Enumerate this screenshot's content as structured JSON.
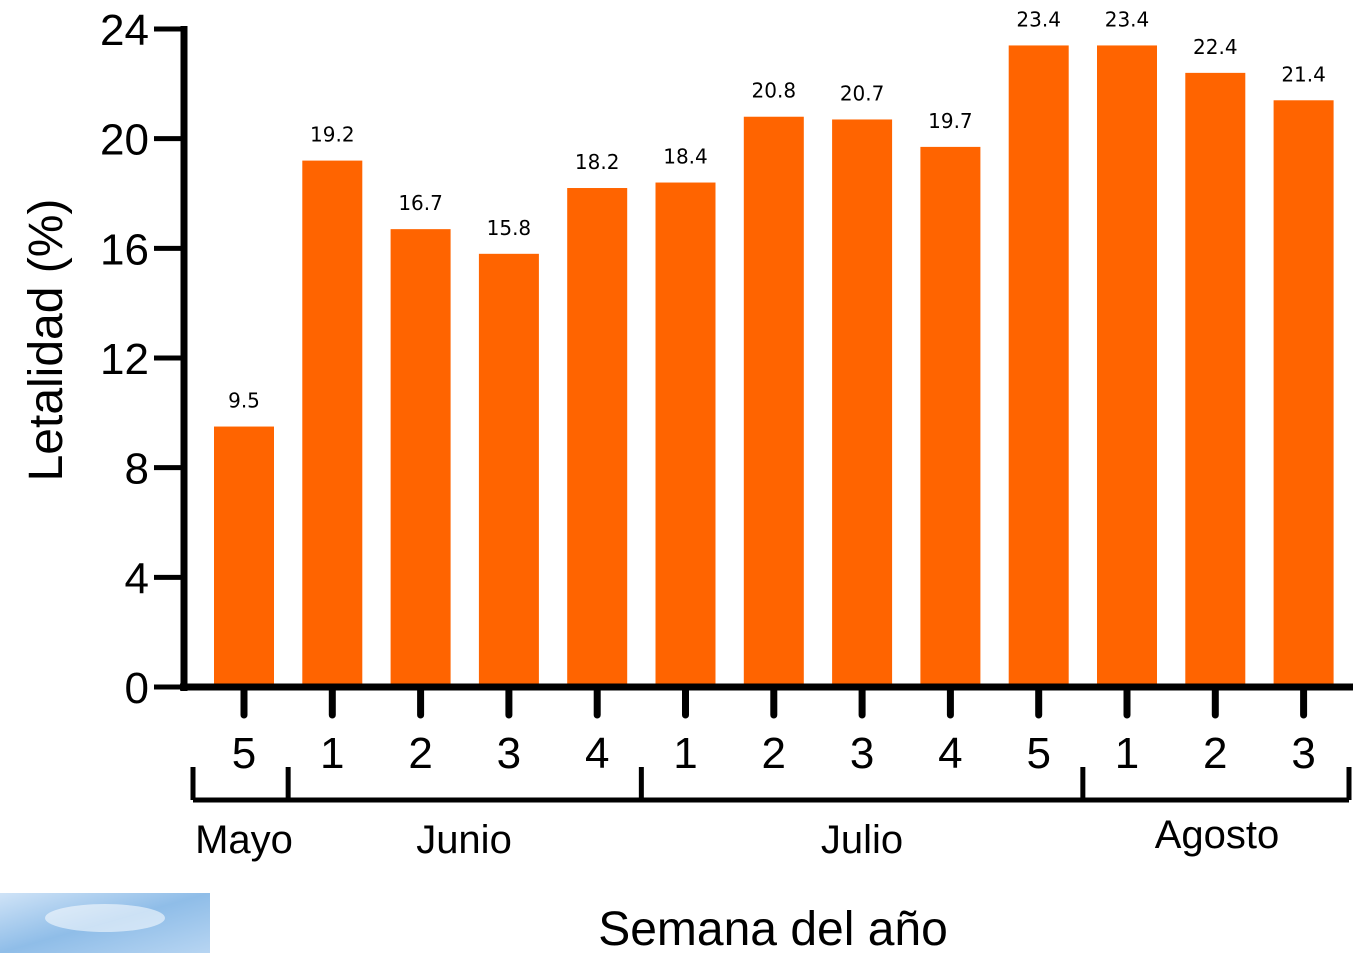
{
  "chart_data": {
    "type": "bar",
    "xlabel": "Semana del año",
    "ylabel": "Letalidad (%)",
    "ylim": [
      0,
      24
    ],
    "yticks": [
      0,
      4,
      8,
      12,
      16,
      20,
      24
    ],
    "categories": [
      "5",
      "1",
      "2",
      "3",
      "4",
      "1",
      "2",
      "3",
      "4",
      "5",
      "1",
      "2",
      "3"
    ],
    "values": [
      9.5,
      19.2,
      16.7,
      15.8,
      18.2,
      18.4,
      20.8,
      20.7,
      19.7,
      23.4,
      23.4,
      22.4,
      21.4
    ],
    "data_labels": [
      "9.5",
      "19.2",
      "16.7",
      "15.8",
      "18.2",
      "18.4",
      "20.8",
      "20.7",
      "19.7",
      "23.4",
      "23.4",
      "22.4",
      "21.4"
    ],
    "month_groups": [
      {
        "label": "Mayo",
        "start": 0,
        "end": 0
      },
      {
        "label": "Junio",
        "start": 1,
        "end": 4
      },
      {
        "label": "Julio",
        "start": 5,
        "end": 9
      },
      {
        "label": "Agosto",
        "start": 10,
        "end": 12
      }
    ],
    "bar_color": "#ff6400",
    "grid": false,
    "legend": "none"
  }
}
